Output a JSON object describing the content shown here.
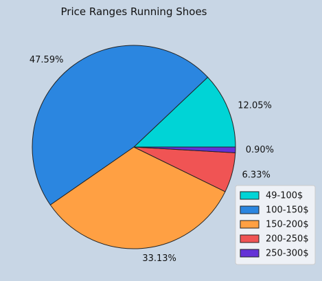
{
  "chart_data": {
    "type": "pie",
    "title": "Price Ranges Running Shoes",
    "slices": [
      {
        "label": "49-100$",
        "value": 12.05,
        "pct_label": "12.05%",
        "color": "#00d4d6"
      },
      {
        "label": "100-150$",
        "value": 47.59,
        "pct_label": "47.59%",
        "color": "#2b86e0"
      },
      {
        "label": "150-200$",
        "value": 33.13,
        "pct_label": "33.13%",
        "color": "#ffa043"
      },
      {
        "label": "200-250$",
        "value": 6.33,
        "pct_label": "6.33%",
        "color": "#f05454"
      },
      {
        "label": "250-300$",
        "value": 0.9,
        "pct_label": "0.90%",
        "color": "#6432d6"
      }
    ],
    "start_angle_deg": 0,
    "direction": "counterclockwise",
    "legend_position": "lower-right",
    "background_color": "#c8d6e5",
    "edge_color": "#222222"
  }
}
